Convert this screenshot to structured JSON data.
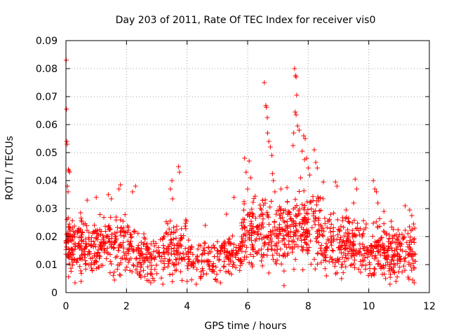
{
  "chart_data": {
    "type": "scatter",
    "title": "Day 203 of 2011, Rate Of TEC Index for receiver vis0",
    "xlabel": "GPS time / hours",
    "ylabel": "ROTI / TECUs",
    "xlim": [
      0,
      12
    ],
    "ylim": [
      0,
      0.09
    ],
    "xticks": [
      0,
      2,
      4,
      6,
      8,
      10,
      12
    ],
    "xtick_labels": [
      "0",
      "2",
      "4",
      "6",
      "8",
      "10",
      "12"
    ],
    "yticks": [
      0,
      0.01,
      0.02,
      0.03,
      0.04,
      0.05,
      0.06,
      0.07,
      0.08,
      0.09
    ],
    "ytick_labels": [
      "0",
      "0.01",
      "0.02",
      "0.03",
      "0.04",
      "0.05",
      "0.06",
      "0.07",
      "0.08",
      "0.09"
    ],
    "grid": true,
    "legend": "none",
    "marker": "+",
    "color": "#ff0000",
    "series": [
      {
        "name": "vis0",
        "points": [
          [
            0.01,
            0.083
          ],
          [
            0.02,
            0.0655
          ],
          [
            0.03,
            0.054
          ],
          [
            0.04,
            0.053
          ],
          [
            0.08,
            0.044
          ],
          [
            0.1,
            0.0435
          ],
          [
            0.12,
            0.043
          ],
          [
            0.05,
            0.038
          ],
          [
            0.07,
            0.036
          ],
          [
            3.5,
            0.04
          ],
          [
            3.45,
            0.037
          ],
          [
            3.52,
            0.0335
          ],
          [
            3.72,
            0.045
          ],
          [
            3.75,
            0.043
          ],
          [
            5.9,
            0.048
          ],
          [
            6.05,
            0.047
          ],
          [
            5.95,
            0.043
          ],
          [
            6.1,
            0.041
          ],
          [
            6.0,
            0.037
          ],
          [
            6.55,
            0.075
          ],
          [
            6.6,
            0.0668
          ],
          [
            6.62,
            0.0662
          ],
          [
            6.65,
            0.0625
          ],
          [
            6.66,
            0.057
          ],
          [
            6.7,
            0.054
          ],
          [
            6.75,
            0.052
          ],
          [
            6.8,
            0.049
          ],
          [
            6.82,
            0.0425
          ],
          [
            6.85,
            0.04
          ],
          [
            7.55,
            0.08
          ],
          [
            7.58,
            0.0775
          ],
          [
            7.6,
            0.077
          ],
          [
            7.62,
            0.0705
          ],
          [
            7.57,
            0.0645
          ],
          [
            7.6,
            0.0635
          ],
          [
            7.65,
            0.0595
          ],
          [
            7.7,
            0.058
          ],
          [
            7.52,
            0.057
          ],
          [
            7.5,
            0.0525
          ],
          [
            7.85,
            0.056
          ],
          [
            7.9,
            0.055
          ],
          [
            7.8,
            0.0505
          ],
          [
            7.95,
            0.048
          ],
          [
            7.88,
            0.0475
          ],
          [
            8.0,
            0.0445
          ],
          [
            8.05,
            0.042
          ],
          [
            7.75,
            0.041
          ],
          [
            8.2,
            0.051
          ],
          [
            8.25,
            0.0465
          ],
          [
            8.3,
            0.0445
          ],
          [
            8.5,
            0.0395
          ],
          [
            8.9,
            0.0395
          ],
          [
            8.95,
            0.038
          ],
          [
            9.55,
            0.0405
          ],
          [
            9.6,
            0.037
          ],
          [
            10.15,
            0.04
          ],
          [
            10.2,
            0.037
          ],
          [
            10.25,
            0.036
          ],
          [
            2.3,
            0.038
          ],
          [
            2.2,
            0.036
          ],
          [
            1.4,
            0.035
          ],
          [
            1.5,
            0.0335
          ],
          [
            1.8,
            0.0385
          ],
          [
            1.75,
            0.037
          ],
          [
            1.0,
            0.034
          ],
          [
            0.7,
            0.033
          ],
          [
            4.6,
            0.024
          ],
          [
            5.3,
            0.028
          ],
          [
            5.55,
            0.034
          ],
          [
            6.9,
            0.036
          ],
          [
            7.1,
            0.037
          ],
          [
            7.3,
            0.0375
          ],
          [
            9.25,
            0.0295
          ],
          [
            9.5,
            0.032
          ],
          [
            10.3,
            0.032
          ],
          [
            10.5,
            0.029
          ],
          [
            11.2,
            0.031
          ],
          [
            11.35,
            0.0295
          ],
          [
            11.42,
            0.0275
          ],
          [
            11.48,
            0.0245
          ],
          [
            11.52,
            0.023
          ],
          [
            11.5,
            0.0035
          ],
          [
            11.45,
            0.0045
          ],
          [
            4.0,
            0.004
          ],
          [
            4.3,
            0.003
          ],
          [
            3.2,
            0.003
          ],
          [
            2.8,
            0.0035
          ],
          [
            1.6,
            0.0045
          ],
          [
            0.3,
            0.0035
          ],
          [
            0.5,
            0.004
          ],
          [
            6.7,
            0.007
          ],
          [
            8.6,
            0.006
          ],
          [
            10.7,
            0.003
          ],
          [
            10.9,
            0.004
          ],
          [
            5.1,
            0.0035
          ],
          [
            7.2,
            0.0025
          ],
          [
            9.1,
            0.005
          ],
          [
            11.3,
            0.0055
          ]
        ],
        "bands": [
          {
            "x": [
              0.0,
              0.3
            ],
            "y": [
              0.005,
              0.03
            ],
            "n": 70
          },
          {
            "x": [
              0.3,
              2.0
            ],
            "y": [
              0.004,
              0.03
            ],
            "n": 240
          },
          {
            "x": [
              2.0,
              3.3
            ],
            "y": [
              0.003,
              0.025
            ],
            "n": 150
          },
          {
            "x": [
              3.3,
              4.0
            ],
            "y": [
              0.003,
              0.028
            ],
            "n": 90
          },
          {
            "x": [
              4.0,
              5.0
            ],
            "y": [
              0.003,
              0.02
            ],
            "n": 90
          },
          {
            "x": [
              5.0,
              5.8
            ],
            "y": [
              0.006,
              0.022
            ],
            "n": 90
          },
          {
            "x": [
              5.8,
              6.5
            ],
            "y": [
              0.008,
              0.035
            ],
            "n": 110
          },
          {
            "x": [
              6.5,
              7.5
            ],
            "y": [
              0.007,
              0.035
            ],
            "n": 140
          },
          {
            "x": [
              7.5,
              8.5
            ],
            "y": [
              0.007,
              0.038
            ],
            "n": 150
          },
          {
            "x": [
              8.5,
              9.5
            ],
            "y": [
              0.006,
              0.03
            ],
            "n": 140
          },
          {
            "x": [
              9.5,
              10.5
            ],
            "y": [
              0.004,
              0.027
            ],
            "n": 130
          },
          {
            "x": [
              10.5,
              11.55
            ],
            "y": [
              0.003,
              0.026
            ],
            "n": 150
          }
        ]
      }
    ]
  }
}
